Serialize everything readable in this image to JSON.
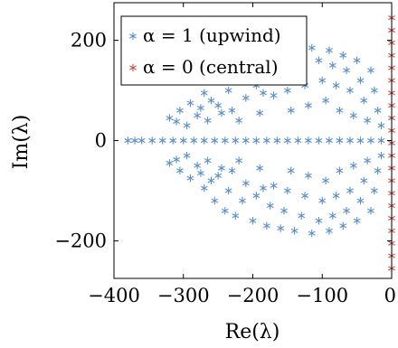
{
  "chart_data": {
    "type": "scatter",
    "xlabel": "Re(λ)",
    "ylabel": "Im(λ)",
    "xlim": [
      -400,
      0
    ],
    "ylim": [
      -275,
      275
    ],
    "xticks": [
      {
        "value": -400,
        "label": "−400"
      },
      {
        "value": -300,
        "label": "−300"
      },
      {
        "value": -200,
        "label": "−200"
      },
      {
        "value": -100,
        "label": "−100"
      },
      {
        "value": 0,
        "label": "0"
      }
    ],
    "yticks": [
      {
        "value": -200,
        "label": "−200"
      },
      {
        "value": 0,
        "label": "0"
      },
      {
        "value": 200,
        "label": "200"
      }
    ],
    "grid": false,
    "legend_position": "top-left",
    "legend": [
      {
        "label": "α = 1 (upwind)",
        "color": "#5b8fc8"
      },
      {
        "label": "α = 0 (central)",
        "color": "#c8504a"
      }
    ],
    "series": [
      {
        "name": "α = 1 (upwind)",
        "color": "#5b8fc8",
        "marker": "asterisk",
        "points": [
          [
            -380,
            0
          ],
          [
            -370,
            0
          ],
          [
            -360,
            0
          ],
          [
            -345,
            0
          ],
          [
            -330,
            0
          ],
          [
            -315,
            0
          ],
          [
            -300,
            0
          ],
          [
            -285,
            0
          ],
          [
            -270,
            0
          ],
          [
            -255,
            0
          ],
          [
            -240,
            0
          ],
          [
            -225,
            0
          ],
          [
            -210,
            0
          ],
          [
            -195,
            0
          ],
          [
            -180,
            0
          ],
          [
            -165,
            0
          ],
          [
            -150,
            0
          ],
          [
            -135,
            0
          ],
          [
            -120,
            0
          ],
          [
            -105,
            0
          ],
          [
            -90,
            0
          ],
          [
            -75,
            0
          ],
          [
            -60,
            0
          ],
          [
            -45,
            0
          ],
          [
            -30,
            0
          ],
          [
            -15,
            0
          ],
          [
            -320,
            -45
          ],
          [
            -310,
            -38
          ],
          [
            -305,
            -60
          ],
          [
            -295,
            -30
          ],
          [
            -290,
            -75
          ],
          [
            -280,
            -50
          ],
          [
            -270,
            -95
          ],
          [
            -265,
            -40
          ],
          [
            -255,
            -120
          ],
          [
            -250,
            -70
          ],
          [
            -240,
            -140
          ],
          [
            -235,
            -100
          ],
          [
            -230,
            -60
          ],
          [
            -225,
            -150
          ],
          [
            -215,
            -120
          ],
          [
            -210,
            -85
          ],
          [
            -200,
            -160
          ],
          [
            -195,
            -110
          ],
          [
            -190,
            -55
          ],
          [
            -180,
            -170
          ],
          [
            -175,
            -130
          ],
          [
            -170,
            -90
          ],
          [
            -160,
            -175
          ],
          [
            -155,
            -140
          ],
          [
            -150,
            -100
          ],
          [
            -145,
            -60
          ],
          [
            -140,
            -180
          ],
          [
            -130,
            -150
          ],
          [
            -125,
            -110
          ],
          [
            -120,
            -70
          ],
          [
            -115,
            -185
          ],
          [
            -105,
            -160
          ],
          [
            -100,
            -120
          ],
          [
            -95,
            -80
          ],
          [
            -90,
            -180
          ],
          [
            -85,
            -150
          ],
          [
            -80,
            -110
          ],
          [
            -75,
            -60
          ],
          [
            -70,
            -170
          ],
          [
            -65,
            -140
          ],
          [
            -60,
            -100
          ],
          [
            -55,
            -50
          ],
          [
            -50,
            -160
          ],
          [
            -45,
            -120
          ],
          [
            -40,
            -80
          ],
          [
            -35,
            -40
          ],
          [
            -30,
            -140
          ],
          [
            -25,
            -100
          ],
          [
            -20,
            -60
          ],
          [
            -15,
            -30
          ],
          [
            -185,
            -95
          ],
          [
            -220,
            -40
          ],
          [
            -245,
            -55
          ],
          [
            -260,
            -80
          ],
          [
            -275,
            -65
          ],
          [
            -320,
            45
          ],
          [
            -310,
            38
          ],
          [
            -305,
            60
          ],
          [
            -295,
            30
          ],
          [
            -290,
            75
          ],
          [
            -280,
            50
          ],
          [
            -270,
            95
          ],
          [
            -265,
            40
          ],
          [
            -255,
            120
          ],
          [
            -250,
            70
          ],
          [
            -240,
            140
          ],
          [
            -235,
            100
          ],
          [
            -230,
            60
          ],
          [
            -225,
            150
          ],
          [
            -215,
            120
          ],
          [
            -210,
            85
          ],
          [
            -200,
            160
          ],
          [
            -195,
            110
          ],
          [
            -190,
            55
          ],
          [
            -180,
            170
          ],
          [
            -175,
            130
          ],
          [
            -170,
            90
          ],
          [
            -160,
            175
          ],
          [
            -155,
            140
          ],
          [
            -150,
            100
          ],
          [
            -145,
            60
          ],
          [
            -140,
            180
          ],
          [
            -130,
            150
          ],
          [
            -125,
            110
          ],
          [
            -120,
            70
          ],
          [
            -115,
            185
          ],
          [
            -105,
            160
          ],
          [
            -100,
            120
          ],
          [
            -95,
            80
          ],
          [
            -90,
            180
          ],
          [
            -85,
            150
          ],
          [
            -80,
            110
          ],
          [
            -75,
            60
          ],
          [
            -70,
            170
          ],
          [
            -65,
            140
          ],
          [
            -60,
            100
          ],
          [
            -55,
            50
          ],
          [
            -50,
            160
          ],
          [
            -45,
            120
          ],
          [
            -40,
            80
          ],
          [
            -35,
            40
          ],
          [
            -30,
            140
          ],
          [
            -25,
            100
          ],
          [
            -20,
            60
          ],
          [
            -15,
            30
          ],
          [
            -185,
            95
          ],
          [
            -220,
            40
          ],
          [
            -245,
            55
          ],
          [
            -260,
            80
          ],
          [
            -275,
            65
          ]
        ]
      },
      {
        "name": "α = 0 (central)",
        "color": "#c8504a",
        "marker": "asterisk",
        "points": [
          [
            0,
            -255
          ],
          [
            0,
            -230
          ],
          [
            0,
            -205
          ],
          [
            0,
            -180
          ],
          [
            0,
            -155
          ],
          [
            0,
            -130
          ],
          [
            0,
            -105
          ],
          [
            0,
            -80
          ],
          [
            0,
            -55
          ],
          [
            0,
            -30
          ],
          [
            0,
            -5
          ],
          [
            0,
            20
          ],
          [
            0,
            45
          ],
          [
            0,
            70
          ],
          [
            0,
            95
          ],
          [
            0,
            120
          ],
          [
            0,
            145
          ],
          [
            0,
            170
          ],
          [
            0,
            195
          ],
          [
            0,
            220
          ],
          [
            0,
            245
          ]
        ]
      }
    ]
  }
}
